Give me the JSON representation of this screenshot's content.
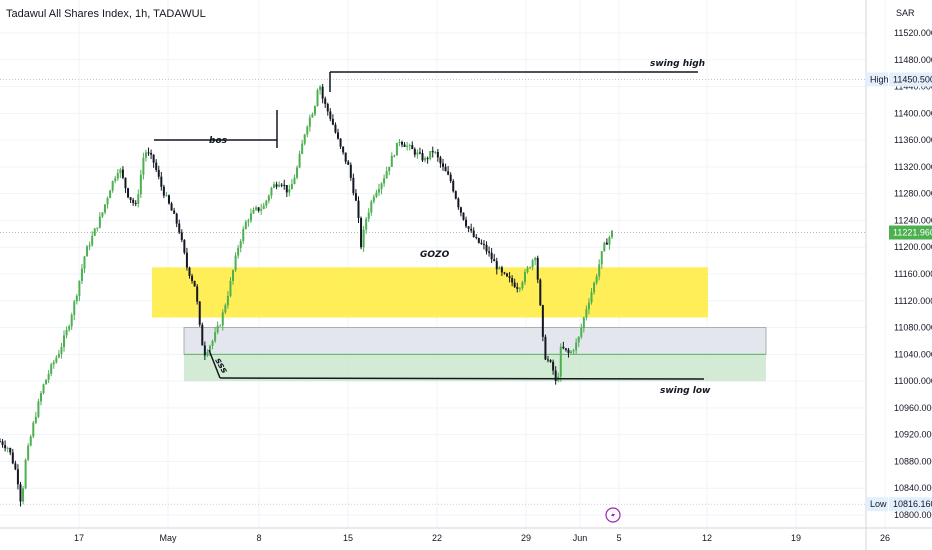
{
  "header": {
    "title": "Tadawul All Shares Index, 1h, TADAWUL",
    "currency": "SAR"
  },
  "colors": {
    "up": "#26a69a",
    "down": "#131722",
    "up_candle": "#4caf50",
    "zone_yellow": "#ffeb3b",
    "zone_gray": "#e0e3eb",
    "zone_green": "#c8e6c9",
    "price_tag": "#4caf50",
    "axis_tag": "#e3effd"
  },
  "chart_data": {
    "type": "candlestick",
    "ylim": [
      10800,
      11540
    ],
    "yticks": [
      "11520.000",
      "11480.000",
      "11440.000",
      "11400.000",
      "11360.000",
      "11320.000",
      "11280.000",
      "11240.000",
      "11200.000",
      "11160.000",
      "11120.000",
      "11080.000",
      "11040.000",
      "11000.000",
      "10960.000",
      "10920.000",
      "10880.000",
      "10840.000",
      "10800.000"
    ],
    "xticks": [
      "17",
      "May",
      "8",
      "15",
      "22",
      "29",
      "Jun",
      "5",
      "12",
      "19",
      "26"
    ],
    "last_price": "11221.960",
    "high": {
      "label": "High",
      "value": "11450.500"
    },
    "low": {
      "label": "Low",
      "value": "10816.160"
    },
    "annotations": {
      "swing_high": "swing high",
      "bos": "bos",
      "gozo": "GOZO",
      "swing_low": "swing low",
      "sss": "sss"
    },
    "zones": [
      {
        "name": "GOZO",
        "top": 11170,
        "bottom": 11095,
        "color": "yellow"
      },
      {
        "name": "gray",
        "top": 11080,
        "bottom": 11040,
        "color": "gray"
      },
      {
        "name": "green",
        "top": 11040,
        "bottom": 11000,
        "color": "green"
      }
    ],
    "series_path": [
      [
        0,
        10910
      ],
      [
        0.01,
        10900
      ],
      [
        0.02,
        10860
      ],
      [
        0.025,
        10816
      ],
      [
        0.03,
        10880
      ],
      [
        0.04,
        10940
      ],
      [
        0.05,
        10990
      ],
      [
        0.06,
        11020
      ],
      [
        0.07,
        11045
      ],
      [
        0.08,
        11080
      ],
      [
        0.09,
        11130
      ],
      [
        0.1,
        11190
      ],
      [
        0.11,
        11220
      ],
      [
        0.12,
        11250
      ],
      [
        0.13,
        11290
      ],
      [
        0.14,
        11320
      ],
      [
        0.15,
        11280
      ],
      [
        0.16,
        11260
      ],
      [
        0.17,
        11345
      ],
      [
        0.18,
        11330
      ],
      [
        0.19,
        11290
      ],
      [
        0.2,
        11260
      ],
      [
        0.21,
        11230
      ],
      [
        0.22,
        11170
      ],
      [
        0.23,
        11140
      ],
      [
        0.235,
        11080
      ],
      [
        0.24,
        11040
      ],
      [
        0.25,
        11060
      ],
      [
        0.26,
        11090
      ],
      [
        0.27,
        11140
      ],
      [
        0.28,
        11200
      ],
      [
        0.29,
        11240
      ],
      [
        0.3,
        11255
      ],
      [
        0.31,
        11260
      ],
      [
        0.32,
        11290
      ],
      [
        0.33,
        11300
      ],
      [
        0.34,
        11280
      ],
      [
        0.35,
        11320
      ],
      [
        0.36,
        11380
      ],
      [
        0.37,
        11410
      ],
      [
        0.375,
        11450
      ],
      [
        0.38,
        11420
      ],
      [
        0.39,
        11390
      ],
      [
        0.4,
        11350
      ],
      [
        0.41,
        11320
      ],
      [
        0.42,
        11260
      ],
      [
        0.425,
        11200
      ],
      [
        0.43,
        11240
      ],
      [
        0.44,
        11280
      ],
      [
        0.45,
        11300
      ],
      [
        0.46,
        11330
      ],
      [
        0.47,
        11360
      ],
      [
        0.48,
        11350
      ],
      [
        0.49,
        11340
      ],
      [
        0.5,
        11330
      ],
      [
        0.51,
        11345
      ],
      [
        0.52,
        11320
      ],
      [
        0.53,
        11300
      ],
      [
        0.54,
        11260
      ],
      [
        0.55,
        11230
      ],
      [
        0.56,
        11210
      ],
      [
        0.57,
        11200
      ],
      [
        0.58,
        11180
      ],
      [
        0.59,
        11160
      ],
      [
        0.6,
        11150
      ],
      [
        0.61,
        11140
      ],
      [
        0.62,
        11165
      ],
      [
        0.63,
        11190
      ],
      [
        0.635,
        11120
      ],
      [
        0.64,
        11040
      ],
      [
        0.65,
        11020
      ],
      [
        0.655,
        10990
      ],
      [
        0.66,
        11050
      ],
      [
        0.67,
        11040
      ],
      [
        0.68,
        11060
      ],
      [
        0.69,
        11110
      ],
      [
        0.7,
        11150
      ],
      [
        0.71,
        11200
      ],
      [
        0.72,
        11222
      ]
    ]
  }
}
